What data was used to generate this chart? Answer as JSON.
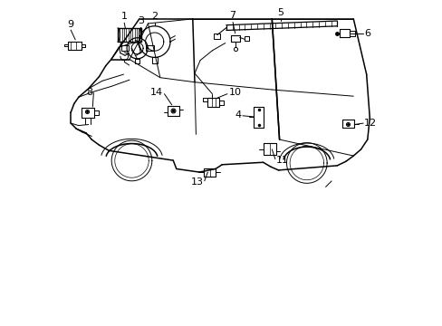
{
  "background_color": "#ffffff",
  "line_color": "#000000",
  "fig_width": 4.89,
  "fig_height": 3.6,
  "dpi": 100,
  "labels": {
    "9": [
      0.38,
      9.08,
      0.55,
      8.72
    ],
    "1": [
      1.92,
      9.25,
      2.05,
      8.95
    ],
    "3": [
      2.62,
      9.05,
      2.62,
      8.62
    ],
    "2": [
      2.95,
      9.25,
      2.95,
      8.98
    ],
    "7": [
      5.35,
      9.25,
      5.52,
      8.95
    ],
    "5": [
      6.82,
      9.3,
      6.82,
      8.72
    ],
    "6": [
      9.15,
      8.52,
      8.88,
      8.42
    ],
    "8": [
      1.05,
      7.0,
      1.18,
      6.72
    ],
    "14": [
      3.48,
      7.05,
      3.55,
      6.75
    ],
    "10": [
      5.05,
      7.12,
      4.88,
      6.92
    ],
    "4": [
      5.85,
      6.45,
      5.95,
      6.15
    ],
    "12": [
      9.18,
      6.38,
      8.92,
      6.22
    ],
    "13": [
      4.72,
      4.28,
      4.72,
      4.62
    ],
    "11": [
      6.58,
      5.22,
      6.55,
      5.52
    ]
  }
}
